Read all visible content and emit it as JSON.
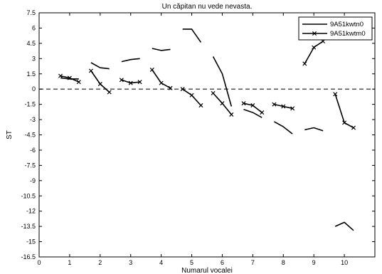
{
  "chart_data": {
    "type": "line",
    "title": "Un căpitan nu vede nevasta.",
    "xlabel": "Numarul vocalei",
    "ylabel": "ST",
    "xlim": [
      0,
      11
    ],
    "ylim": [
      -16.5,
      7.5
    ],
    "x_ticks": [
      0,
      1,
      2,
      3,
      4,
      5,
      6,
      7,
      8,
      9,
      10
    ],
    "y_ticks": [
      7.5,
      6,
      4.5,
      3,
      1.5,
      0,
      -1.5,
      -3,
      -4.5,
      -6,
      -7.5,
      -9,
      -10.5,
      -12,
      -13.5,
      -15,
      -16.5
    ],
    "x_tick_labels": [
      "0",
      "1",
      "2",
      "3",
      "4",
      "5",
      "6",
      "7",
      "8",
      "9",
      "10"
    ],
    "y_tick_labels": [
      "7.5",
      "6",
      "4.5",
      "3",
      "1.5",
      "0",
      "-1.5",
      "-3",
      "-4.5",
      "-6",
      "-7.5",
      "-9",
      "-10.5",
      "-12",
      "-13.5",
      "-15",
      "-16.5"
    ],
    "reference_line": {
      "y": 0,
      "style": "dashed"
    },
    "grid": false,
    "legend_position": "top-right",
    "series": [
      {
        "name": "9A51kwtn0",
        "marker": "none",
        "segments": [
          [
            [
              0.7,
              1.1
            ],
            [
              1.0,
              1.0
            ],
            [
              1.3,
              1.0
            ]
          ],
          [
            [
              1.7,
              2.6
            ],
            [
              2.0,
              2.1
            ],
            [
              2.3,
              2.0
            ]
          ],
          [
            [
              2.7,
              2.7
            ],
            [
              3.0,
              2.9
            ],
            [
              3.3,
              3.0
            ]
          ],
          [
            [
              3.7,
              4.0
            ],
            [
              4.0,
              3.8
            ],
            [
              4.3,
              3.9
            ]
          ],
          [
            [
              4.7,
              5.9
            ],
            [
              5.0,
              5.9
            ],
            [
              5.3,
              4.6
            ]
          ],
          [
            [
              5.7,
              3.2
            ],
            [
              6.0,
              1.5
            ],
            [
              6.3,
              -1.7
            ]
          ],
          [
            [
              6.7,
              -2.0
            ],
            [
              7.0,
              -2.3
            ],
            [
              7.3,
              -2.8
            ]
          ],
          [
            [
              7.7,
              -3.2
            ],
            [
              8.0,
              -3.7
            ],
            [
              8.3,
              -4.4
            ]
          ],
          [
            [
              8.7,
              -4.0
            ],
            [
              9.0,
              -3.8
            ],
            [
              9.3,
              -4.1
            ]
          ],
          [
            [
              9.7,
              -13.5
            ],
            [
              10.0,
              -13.1
            ],
            [
              10.3,
              -13.9
            ]
          ]
        ]
      },
      {
        "name": "9A51kwtm0",
        "marker": "x",
        "segments": [
          [
            [
              0.7,
              1.3
            ],
            [
              1.0,
              1.1
            ],
            [
              1.3,
              0.7
            ]
          ],
          [
            [
              1.7,
              1.8
            ],
            [
              2.0,
              0.5
            ],
            [
              2.3,
              -0.3
            ]
          ],
          [
            [
              2.7,
              0.9
            ],
            [
              3.0,
              0.6
            ],
            [
              3.3,
              0.7
            ]
          ],
          [
            [
              3.7,
              1.9
            ],
            [
              4.0,
              0.6
            ],
            [
              4.3,
              0.1
            ]
          ],
          [
            [
              4.7,
              0.0
            ],
            [
              5.0,
              -0.6
            ],
            [
              5.3,
              -1.6
            ]
          ],
          [
            [
              5.7,
              -0.4
            ],
            [
              6.0,
              -1.4
            ],
            [
              6.3,
              -2.5
            ]
          ],
          [
            [
              6.7,
              -1.4
            ],
            [
              7.0,
              -1.6
            ],
            [
              7.3,
              -2.3
            ]
          ],
          [
            [
              7.7,
              -1.5
            ],
            [
              8.0,
              -1.7
            ],
            [
              8.3,
              -1.9
            ]
          ],
          [
            [
              8.7,
              2.5
            ],
            [
              9.0,
              4.1
            ],
            [
              9.3,
              4.7
            ]
          ],
          [
            [
              9.7,
              -0.5
            ],
            [
              10.0,
              -3.3
            ],
            [
              10.3,
              -3.8
            ]
          ]
        ]
      }
    ]
  }
}
